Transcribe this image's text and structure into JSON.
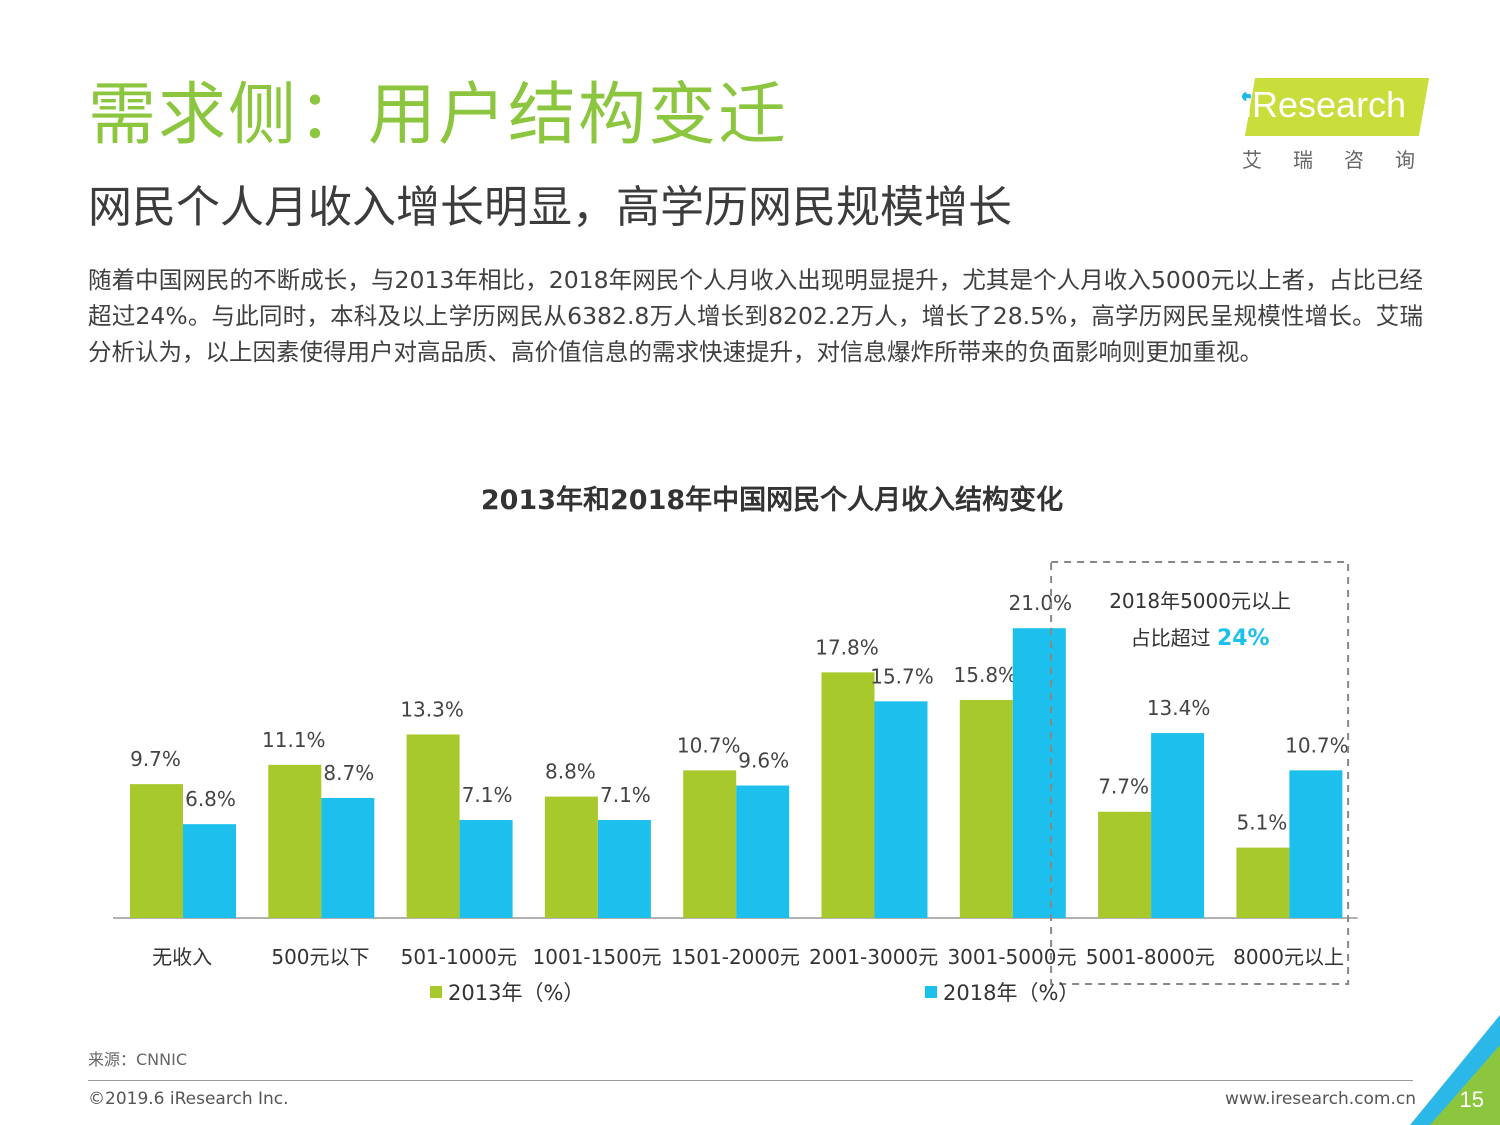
{
  "title": "需求侧：用户结构变迁",
  "subtitle": "网民个人月收入增长明显，高学历网民规模增长",
  "body_text": "随着中国网民的不断成长，与2013年相比，2018年网民个人月收入出现明显提升，尤其是个人月收入5000元以上者，占比已经超过24%。与此同时，本科及以上学历网民从6382.8万人增长到8202.2万人，增长了28.5%，高学历网民呈规模性增长。艾瑞分析认为，以上因素使得用户对高品质、高价值信息的需求快速提升，对信息爆炸所带来的负面影响则更加重视。",
  "logo": {
    "text": "Research",
    "cn": "艾瑞咨询"
  },
  "chart_data": {
    "type": "bar",
    "title": "2013年和2018年中国网民个人月收入结构变化",
    "categories": [
      "无收入",
      "500元以下",
      "501-1000元",
      "1001-1500元",
      "1501-2000元",
      "2001-3000元",
      "3001-5000元",
      "5001-8000元",
      "8000元以上"
    ],
    "series": [
      {
        "name": "2013年（%）",
        "values": [
          9.7,
          11.1,
          13.3,
          8.8,
          10.7,
          17.8,
          15.8,
          7.7,
          5.1
        ],
        "labels": [
          "9.7%",
          "11.1%",
          "13.3%",
          "8.8%",
          "10.7%",
          "17.8%",
          "15.8%",
          "7.7%",
          "5.1%"
        ],
        "color": "#a8c92b"
      },
      {
        "name": "2018年（%）",
        "values": [
          6.8,
          8.7,
          7.1,
          7.1,
          9.6,
          15.7,
          21.0,
          13.4,
          10.7
        ],
        "labels": [
          "6.8%",
          "8.7%",
          "7.1%",
          "7.1%",
          "9.6%",
          "15.7%",
          "21.0%",
          "13.4%",
          "10.7%"
        ],
        "color": "#1dc0ed"
      }
    ],
    "ylim": [
      0,
      24
    ],
    "legend": "bottom",
    "annotation": {
      "line1": "2018年5000元以上",
      "line2_prefix": "占比超过 ",
      "line2_highlight": "24%",
      "highlight_color": "#1dc0ed"
    }
  },
  "source": "来源：CNNIC",
  "copyright": "©2019.6 iResearch Inc.",
  "website": "www.iresearch.com.cn",
  "page_number": "15"
}
